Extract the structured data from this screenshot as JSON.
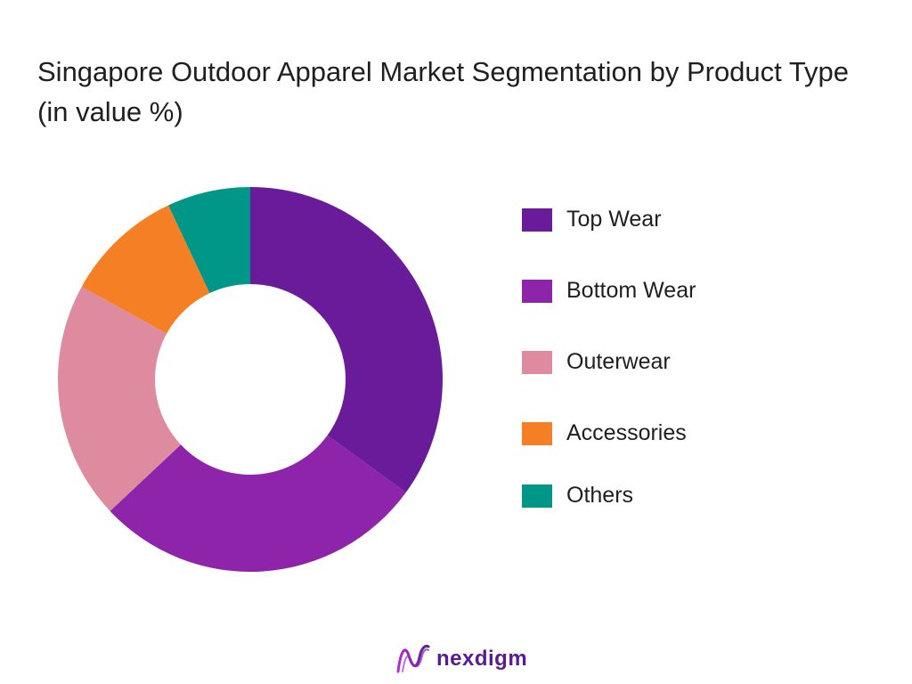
{
  "chart_data": {
    "type": "pie",
    "style": "donut",
    "title": "Singapore Outdoor Apparel Market Segmentation by Product Type (in value %)",
    "categories": [
      "Top Wear",
      "Bottom Wear",
      "Outerwear",
      "Accessories",
      "Others"
    ],
    "values": [
      35,
      28,
      20,
      10,
      7
    ],
    "colors": [
      "#6a1b9a",
      "#8e24aa",
      "#de8ba0",
      "#f57f25",
      "#009688"
    ],
    "legend_position": "right"
  },
  "brand": {
    "name": "nexdigm",
    "icon": "nexdigm-logo-icon"
  }
}
